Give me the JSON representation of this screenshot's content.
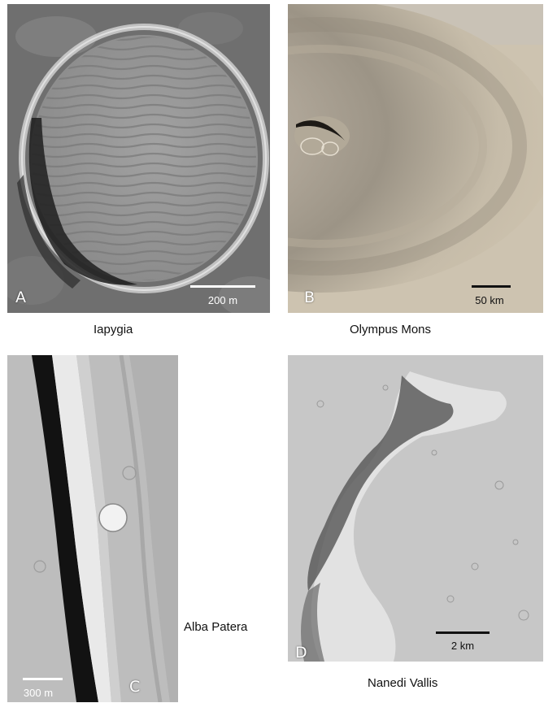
{
  "colors": {
    "background": "#ffffff",
    "panel_letter": "#ffffff",
    "scalebar_light": "#ffffff",
    "scalebar_dark": "#111111"
  },
  "panels": [
    {
      "letter": "A",
      "scale": "200 m",
      "caption": "Iapygia",
      "image": "crater-with-dunes"
    },
    {
      "letter": "B",
      "scale": "50 km",
      "caption": "Olympus Mons",
      "image": "shield-volcano"
    },
    {
      "letter": "C",
      "scale": "300 m",
      "caption": "Alba Patera",
      "image": "graben-trough"
    },
    {
      "letter": "D",
      "scale": "2 km",
      "caption": "Nanedi Vallis",
      "image": "sinuous-valley"
    }
  ]
}
